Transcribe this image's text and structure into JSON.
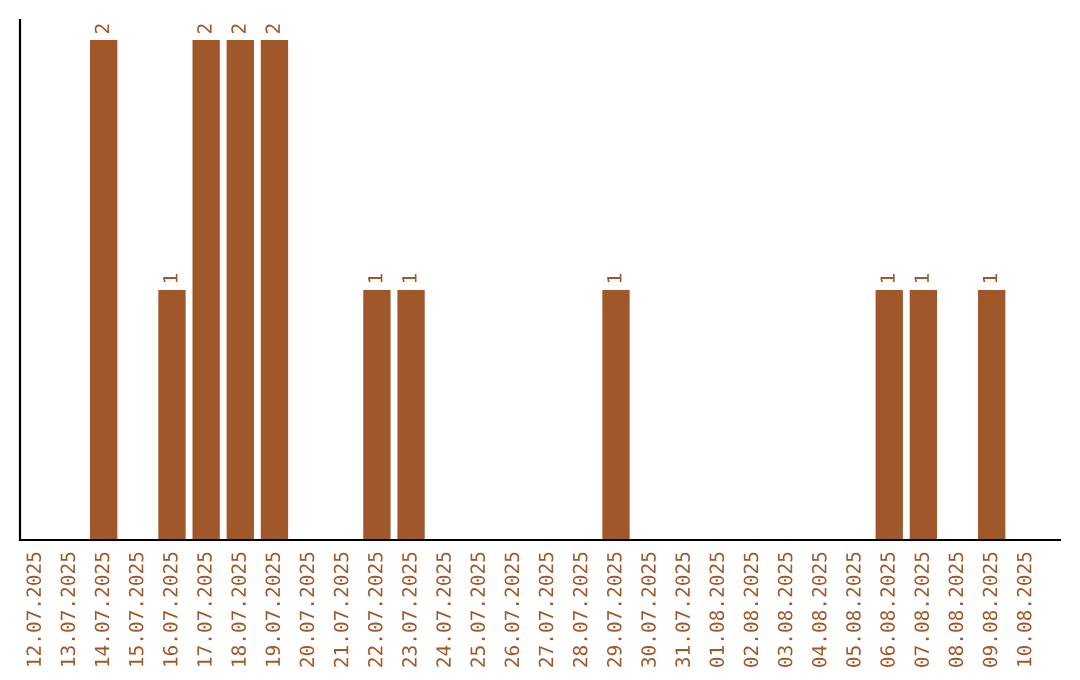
{
  "chart_data": {
    "type": "bar",
    "categories": [
      "12.07.2025",
      "13.07.2025",
      "14.07.2025",
      "15.07.2025",
      "16.07.2025",
      "17.07.2025",
      "18.07.2025",
      "19.07.2025",
      "20.07.2025",
      "21.07.2025",
      "22.07.2025",
      "23.07.2025",
      "24.07.2025",
      "25.07.2025",
      "26.07.2025",
      "27.07.2025",
      "28.07.2025",
      "29.07.2025",
      "30.07.2025",
      "31.07.2025",
      "01.08.2025",
      "02.08.2025",
      "03.08.2025",
      "04.08.2025",
      "05.08.2025",
      "06.08.2025",
      "07.08.2025",
      "08.08.2025",
      "09.08.2025",
      "10.08.2025"
    ],
    "values": [
      0,
      0,
      2,
      0,
      1,
      2,
      2,
      2,
      0,
      0,
      1,
      1,
      0,
      0,
      0,
      0,
      0,
      1,
      0,
      0,
      0,
      0,
      0,
      0,
      0,
      1,
      1,
      0,
      1,
      0
    ],
    "value_labels": [
      null,
      null,
      "2",
      null,
      "1",
      "2",
      "2",
      "2",
      null,
      null,
      "1",
      "1",
      null,
      null,
      null,
      null,
      null,
      "1",
      null,
      null,
      null,
      null,
      null,
      null,
      null,
      "1",
      "1",
      null,
      "1",
      null
    ],
    "color": "#a0582a",
    "ylim": [
      0,
      2.08
    ],
    "tick_labels": "x",
    "grid": false,
    "legend": false
  }
}
